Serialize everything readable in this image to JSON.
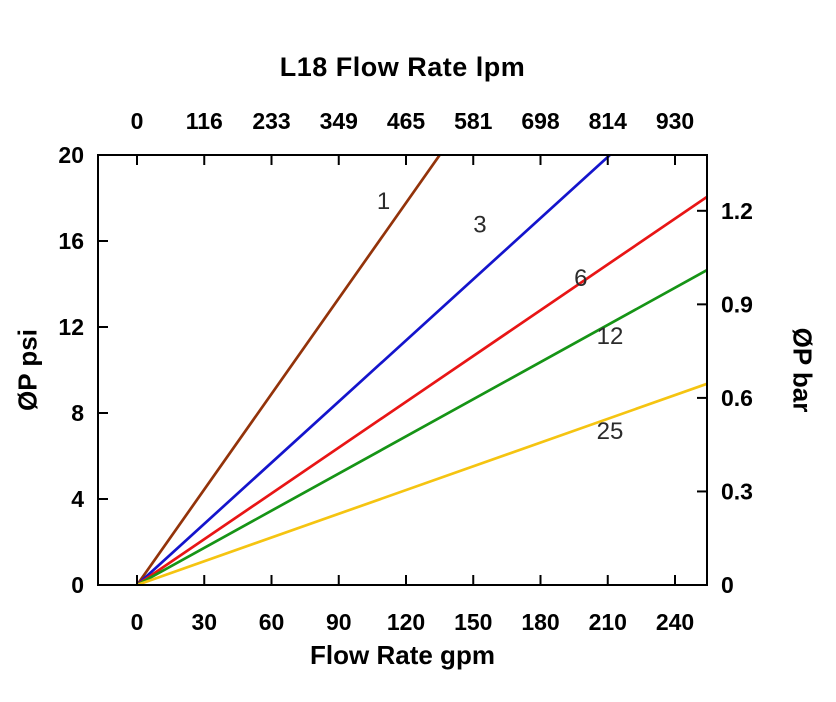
{
  "chart_data": {
    "type": "line",
    "title": "L18 Flow Rate lpm",
    "xlim": [
      0,
      240
    ],
    "ylim": [
      0,
      20
    ],
    "grid": false,
    "top_axis": {
      "ticks": [
        "0",
        "116",
        "233",
        "349",
        "465",
        "581",
        "698",
        "814",
        "930"
      ]
    },
    "bottom_axis": {
      "title": "Flow Rate gpm",
      "ticks": [
        "0",
        "30",
        "60",
        "90",
        "120",
        "150",
        "180",
        "210",
        "240"
      ]
    },
    "left_axis": {
      "title": "ØP psi",
      "ticks": [
        0,
        4,
        8,
        12,
        16,
        20
      ]
    },
    "right_axis": {
      "title": "ØP bar",
      "ticks": [
        0,
        0.3,
        0.6,
        0.9,
        1.2
      ],
      "psi_per_bar": 14.504
    },
    "series": [
      {
        "label": "1",
        "color": "#93330a",
        "slope_psi_per_gpm": 0.1481,
        "label_pos": [
          110,
          17.5
        ]
      },
      {
        "label": "3",
        "color": "#1414cc",
        "slope_psi_per_gpm": 0.0948,
        "label_pos": [
          153,
          16.4
        ]
      },
      {
        "label": "6",
        "color": "#e81515",
        "slope_psi_per_gpm": 0.071,
        "label_pos": [
          198,
          13.9
        ]
      },
      {
        "label": "12",
        "color": "#169416",
        "slope_psi_per_gpm": 0.0576,
        "label_pos": [
          211,
          11.2
        ]
      },
      {
        "label": "25",
        "color": "#f5c411",
        "slope_psi_per_gpm": 0.0368,
        "label_pos": [
          211,
          6.8
        ]
      }
    ]
  }
}
